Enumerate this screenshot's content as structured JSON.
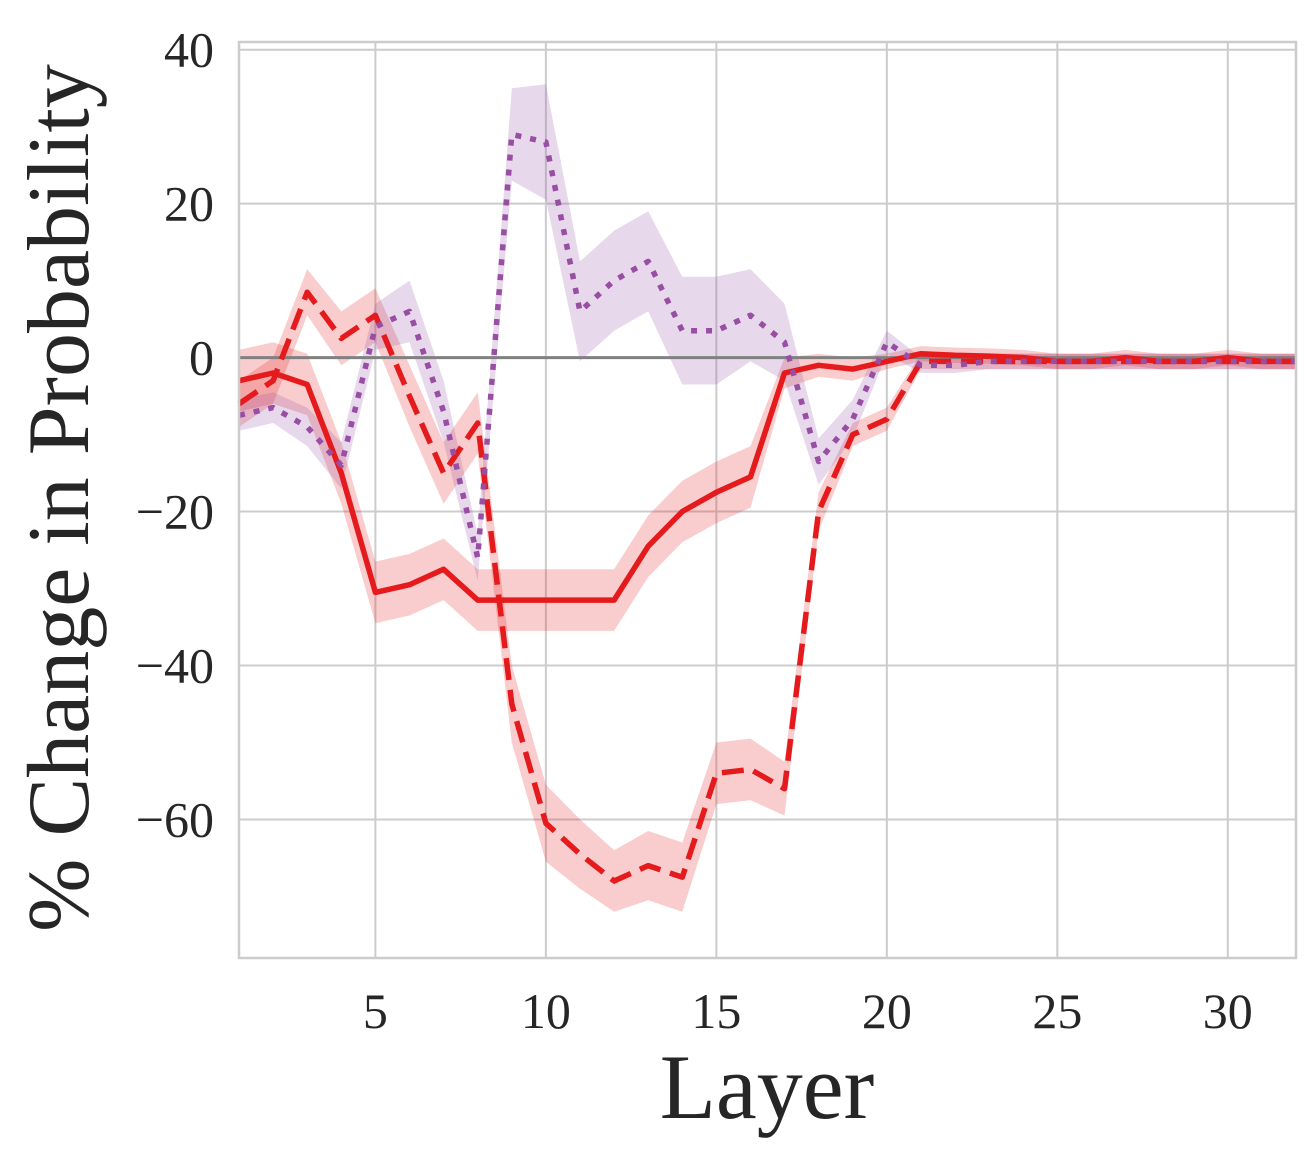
{
  "chart_data": {
    "type": "line",
    "xlabel": "Layer",
    "ylabel": "% Change in Probability",
    "xlim": [
      1,
      32
    ],
    "ylim": [
      -78,
      41
    ],
    "x_ticks": [
      5,
      10,
      15,
      20,
      25,
      30
    ],
    "y_ticks": [
      40,
      20,
      0,
      -20,
      -40,
      -60
    ],
    "y_tick_labels": [
      "40",
      "20",
      "0",
      "−20",
      "−40",
      "−60"
    ],
    "grid": true,
    "zero_line": true,
    "series": [
      {
        "color": "#e41a1c",
        "linestyle": "solid",
        "x": [
          1,
          2,
          3,
          4,
          5,
          6,
          7,
          8,
          9,
          10,
          11,
          12,
          13,
          14,
          15,
          16,
          17,
          18,
          19,
          20,
          21,
          22,
          23,
          24,
          25,
          26,
          27,
          28,
          29,
          30,
          31,
          32
        ],
        "values": [
          -3,
          -2,
          -3.5,
          -15,
          -30.5,
          -29.5,
          -27.5,
          -31.5,
          -31.5,
          -31.5,
          -31.5,
          -31.5,
          -24.5,
          -20,
          -17.5,
          -15.5,
          -2,
          -1,
          -1.5,
          -0.5,
          0.5,
          0.3,
          0.2,
          0,
          -0.5,
          -0.5,
          0,
          -0.5,
          -0.5,
          0,
          -0.5,
          -0.5
        ],
        "band": [
          4,
          4,
          4,
          4,
          4,
          4,
          4,
          4,
          4,
          4,
          4,
          4,
          4,
          4,
          4,
          4,
          2,
          1.5,
          1.5,
          1,
          1,
          1,
          1,
          1,
          1,
          1,
          1,
          1,
          1,
          1,
          1,
          1
        ]
      },
      {
        "color": "#e41a1c",
        "linestyle": "dashed",
        "x": [
          1,
          2,
          3,
          4,
          5,
          6,
          7,
          8,
          9,
          10,
          11,
          12,
          13,
          14,
          15,
          16,
          17,
          18,
          19,
          20,
          21,
          22,
          23,
          24,
          25,
          26,
          27,
          28,
          29,
          30,
          31,
          32
        ],
        "values": [
          -6,
          -3,
          8.5,
          2.5,
          5.5,
          -5,
          -15,
          -8.5,
          -45,
          -60.5,
          -64.5,
          -68,
          -66,
          -67.5,
          -54,
          -53.5,
          -56,
          -20,
          -10,
          -8,
          -0.5,
          -0.5,
          -0.5,
          -0.5,
          -0.5,
          -0.5,
          -0.5,
          -0.5,
          -0.5,
          -0.5,
          -0.5,
          -0.5
        ],
        "band": [
          3,
          3,
          3,
          3.5,
          3.5,
          4,
          4,
          4,
          5,
          5,
          4.5,
          4,
          4.5,
          4.5,
          4,
          4,
          3.5,
          2.5,
          1.5,
          1.5,
          1,
          1,
          1,
          1,
          1,
          1,
          1,
          1,
          1,
          1,
          1,
          1
        ]
      },
      {
        "color": "#984ea3",
        "linestyle": "dotted",
        "x": [
          1,
          2,
          3,
          4,
          5,
          6,
          7,
          8,
          9,
          10,
          11,
          12,
          13,
          14,
          15,
          16,
          17,
          18,
          19,
          20,
          21,
          22,
          23,
          24,
          25,
          26,
          27,
          28,
          29,
          30,
          31,
          32
        ],
        "values": [
          -7.5,
          -6.5,
          -9,
          -14,
          4,
          6,
          -7,
          -26,
          29,
          28,
          6,
          10,
          12.5,
          3.5,
          3.5,
          5.5,
          2,
          -13.5,
          -8,
          2,
          -1,
          -1,
          -0.5,
          -0.5,
          -0.5,
          -0.5,
          -0.5,
          -0.5,
          -0.5,
          -0.5,
          -0.5,
          -0.5
        ],
        "band": [
          2,
          2,
          2.5,
          3,
          3,
          4,
          4,
          3,
          6,
          7.5,
          6.5,
          6.5,
          6.5,
          7,
          7,
          6,
          5,
          3,
          2.5,
          1.5,
          1,
          1,
          1,
          1,
          1,
          1,
          1,
          1,
          1,
          1,
          1,
          1
        ]
      }
    ]
  }
}
